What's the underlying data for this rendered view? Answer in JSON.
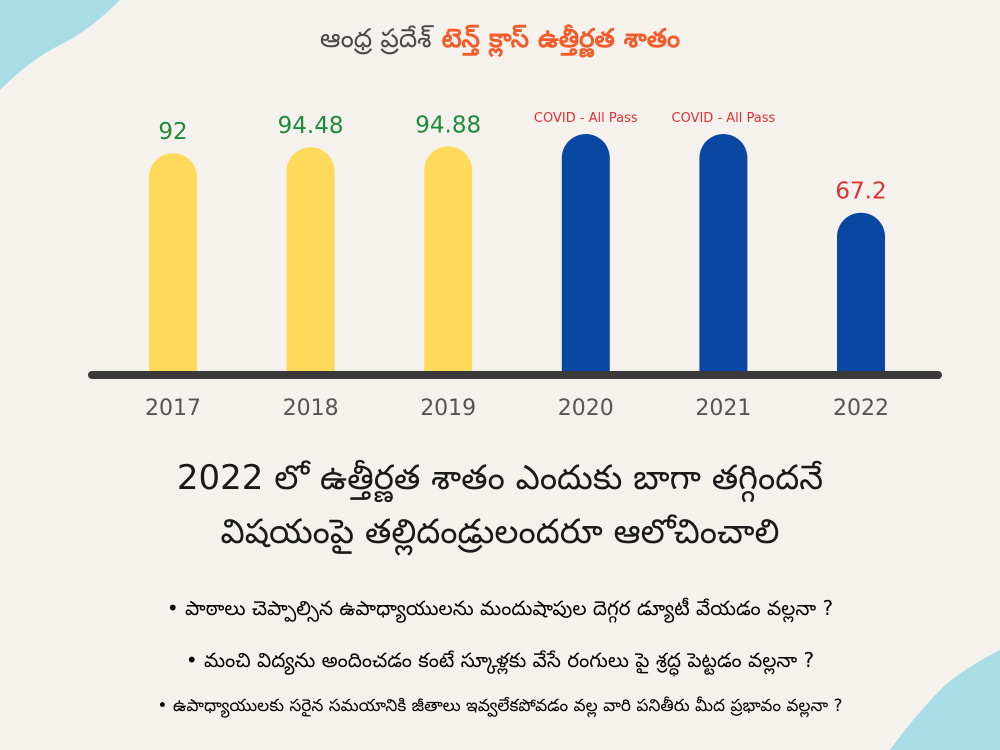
{
  "title": {
    "prefix": "ఆంధ్ర ప్రదేశ్",
    "highlight": "టెన్త్ క్లాస్ ఉత్తీర్ణత శాతం"
  },
  "colors": {
    "yellow_bar": "#ffd95a",
    "blue_bar": "#0a47a3",
    "green_label": "#1e8a3c",
    "red_label": "#e03131",
    "axis": "#3a3a3a",
    "title_accent": "#f25c2a",
    "decoration": "#a8dde6"
  },
  "chart_data": {
    "type": "bar",
    "title": "ఆంధ్ర ప్రదేశ్ టెన్త్ క్లాస్ ఉత్తీర్ణత శాతం",
    "xlabel": "",
    "ylabel": "",
    "categories": [
      "2017",
      "2018",
      "2019",
      "2020",
      "2021",
      "2022"
    ],
    "values": [
      92,
      94.48,
      94.88,
      null,
      null,
      67.2
    ],
    "labels": [
      "92",
      "94.48",
      "94.88",
      "COVID - All Pass",
      "COVID - All Pass",
      "67.2"
    ],
    "bar_colors": [
      "yellow",
      "yellow",
      "yellow",
      "blue",
      "blue",
      "blue"
    ],
    "label_colors": [
      "green",
      "green",
      "green",
      "red",
      "red",
      "red"
    ],
    "notes": "2020 and 2021 bars drawn as 100% (COVID - All Pass)",
    "ylim": [
      0,
      100
    ]
  },
  "headline": {
    "line1": "2022 లో ఉత్తీర్ణత శాతం ఎందుకు బాగా తగ్గిందనే",
    "line2": "విషయంపై తల్లిదండ్రులందరూ ఆలోచించాలి"
  },
  "bullets": [
    "• పాఠాలు చెప్పాల్సిన ఉపాధ్యాయులను మందుషాపుల దెగ్గర డ్యూటీ వేయడం వల్లనా ?",
    "• మంచి విద్యను అందించడం కంటే స్కూళ్లకు వేసే రంగులు పై శ్రద్ధ పెట్టడం వల్లనా ?",
    "• ఉపాధ్యాయులకు సరైన సమయానికి జీతాలు ఇవ్వలేకపోవడం వల్ల వారి పనితీరు మీద ప్రభావం వల్లనా ?"
  ]
}
